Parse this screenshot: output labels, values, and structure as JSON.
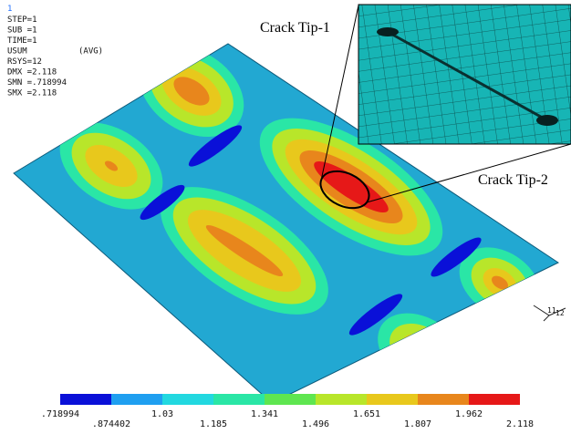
{
  "header": {
    "window_number": "1",
    "lines": [
      "STEP=1",
      "SUB =1",
      "TIME=1",
      "USUM",
      "RSYS=12",
      "DMX =2.118",
      "SMN =.718994",
      "SMX =2.118"
    ],
    "avg": "(AVG)"
  },
  "annotations": [
    "Crack Tip-1",
    "Crack Tip-2"
  ],
  "triad": [
    "11",
    "12"
  ],
  "legend": {
    "colors": [
      "#0a10d8",
      "#1f9ff0",
      "#22d8e0",
      "#2ae6a6",
      "#5fe650",
      "#b8e62a",
      "#e8c81c",
      "#e8861c",
      "#e61818"
    ],
    "labels": [
      ".718994",
      ".874402",
      "1.03",
      "1.185",
      "1.341",
      "1.496",
      "1.651",
      "1.807",
      "1.962",
      "2.118"
    ]
  }
}
